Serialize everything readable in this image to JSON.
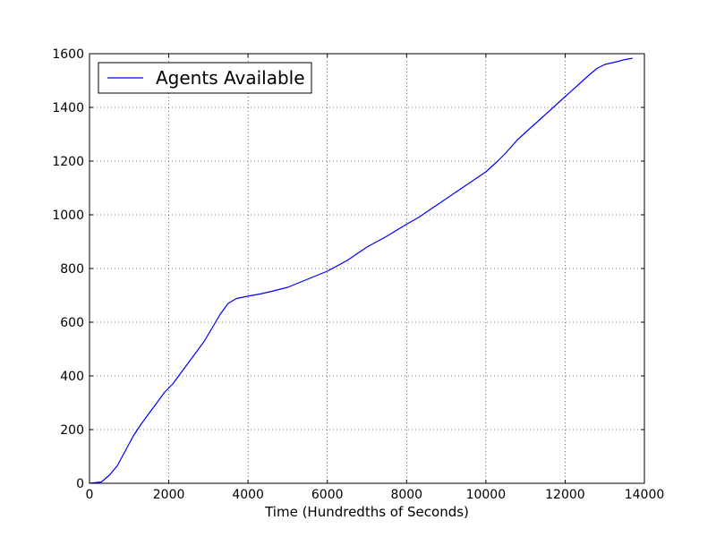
{
  "chart_data": {
    "type": "line",
    "title": "",
    "xlabel": "Time (Hundredths of Seconds)",
    "ylabel": "",
    "xlim": [
      0,
      14000
    ],
    "ylim": [
      0,
      1600
    ],
    "xticks": [
      0,
      2000,
      4000,
      6000,
      8000,
      10000,
      12000,
      14000
    ],
    "yticks": [
      0,
      200,
      400,
      600,
      800,
      1000,
      1200,
      1400,
      1600
    ],
    "xtick_labels": [
      "0",
      "2000",
      "4000",
      "6000",
      "8000",
      "10000",
      "12000",
      "14000"
    ],
    "ytick_labels": [
      "0",
      "200",
      "400",
      "600",
      "800",
      "1000",
      "1200",
      "1400",
      "1600"
    ],
    "grid": true,
    "legend_position": "top-left",
    "series": [
      {
        "name": "Agents Available",
        "color": "#0000ff",
        "x": [
          0,
          300,
          500,
          700,
          900,
          1100,
          1300,
          1500,
          1700,
          1900,
          2100,
          2300,
          2500,
          2700,
          2900,
          3100,
          3300,
          3500,
          3700,
          4000,
          4300,
          4600,
          5000,
          5500,
          6000,
          6500,
          7000,
          7500,
          8000,
          8300,
          8600,
          9000,
          9500,
          10000,
          10300,
          10500,
          10800,
          11100,
          11400,
          11700,
          12000,
          12300,
          12600,
          12800,
          13000,
          13300,
          13500,
          13700
        ],
        "y": [
          0,
          5,
          30,
          65,
          120,
          175,
          220,
          260,
          300,
          340,
          370,
          410,
          450,
          490,
          530,
          580,
          630,
          670,
          688,
          697,
          705,
          715,
          730,
          760,
          790,
          830,
          880,
          920,
          965,
          990,
          1020,
          1060,
          1110,
          1160,
          1200,
          1230,
          1280,
          1320,
          1360,
          1400,
          1440,
          1480,
          1520,
          1545,
          1560,
          1570,
          1578,
          1583
        ]
      }
    ]
  }
}
